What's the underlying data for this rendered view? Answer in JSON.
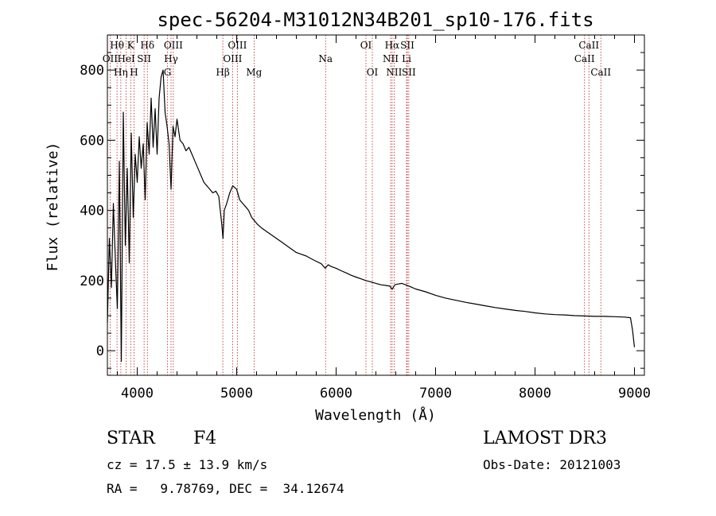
{
  "chart_data": {
    "type": "line",
    "title": "spec-56204-M31012N34B201_sp10-176.fits",
    "xlabel": "Wavelength (Å)",
    "ylabel": "Flux (relative)",
    "xlim": [
      3700,
      9100
    ],
    "ylim": [
      -70,
      900
    ],
    "xticks": [
      4000,
      5000,
      6000,
      7000,
      8000,
      9000
    ],
    "yticks": [
      0,
      200,
      400,
      600,
      800
    ],
    "series": [
      {
        "name": "spectrum",
        "x": [
          3700,
          3720,
          3740,
          3760,
          3780,
          3800,
          3820,
          3840,
          3860,
          3880,
          3900,
          3920,
          3940,
          3960,
          3980,
          4000,
          4020,
          4040,
          4060,
          4080,
          4100,
          4120,
          4140,
          4160,
          4180,
          4200,
          4220,
          4240,
          4260,
          4280,
          4300,
          4320,
          4340,
          4360,
          4380,
          4400,
          4430,
          4460,
          4490,
          4520,
          4550,
          4580,
          4610,
          4640,
          4670,
          4700,
          4730,
          4760,
          4790,
          4820,
          4850,
          4862,
          4875,
          4900,
          4930,
          4960,
          5000,
          5030,
          5060,
          5090,
          5120,
          5150,
          5180,
          5210,
          5250,
          5300,
          5350,
          5400,
          5450,
          5500,
          5550,
          5600,
          5650,
          5700,
          5750,
          5800,
          5850,
          5890,
          5920,
          5950,
          6000,
          6050,
          6100,
          6150,
          6200,
          6250,
          6300,
          6350,
          6400,
          6450,
          6500,
          6540,
          6563,
          6590,
          6620,
          6660,
          6700,
          6750,
          6800,
          6900,
          7000,
          7100,
          7200,
          7300,
          7400,
          7500,
          7600,
          7700,
          7800,
          7900,
          8000,
          8100,
          8200,
          8300,
          8400,
          8500,
          8600,
          8700,
          8800,
          8900,
          8960,
          8980,
          9000
        ],
        "y": [
          80,
          320,
          180,
          420,
          260,
          120,
          540,
          -30,
          680,
          300,
          520,
          250,
          620,
          380,
          560,
          480,
          610,
          520,
          590,
          430,
          650,
          560,
          720,
          580,
          690,
          560,
          720,
          780,
          800,
          680,
          640,
          590,
          460,
          640,
          610,
          660,
          600,
          590,
          570,
          580,
          560,
          540,
          520,
          500,
          480,
          470,
          460,
          450,
          455,
          440,
          360,
          320,
          400,
          420,
          450,
          470,
          460,
          430,
          420,
          410,
          400,
          380,
          370,
          360,
          350,
          340,
          330,
          320,
          310,
          300,
          290,
          280,
          275,
          270,
          262,
          255,
          248,
          235,
          245,
          240,
          235,
          228,
          222,
          215,
          210,
          205,
          200,
          196,
          192,
          188,
          186,
          184,
          175,
          188,
          190,
          192,
          188,
          182,
          176,
          168,
          158,
          150,
          144,
          138,
          133,
          128,
          123,
          119,
          115,
          112,
          108,
          105,
          103,
          102,
          100,
          99,
          98,
          98,
          97,
          96,
          94,
          60,
          10
        ]
      }
    ],
    "lines": [
      {
        "name": "Hθ",
        "x": 3797,
        "row": 0
      },
      {
        "name": "OII",
        "x": 3727,
        "row": 1
      },
      {
        "name": "Hη",
        "x": 3835,
        "row": 2
      },
      {
        "name": "K",
        "x": 3934,
        "row": 0
      },
      {
        "name": "HeI",
        "x": 3889,
        "row": 1
      },
      {
        "name": "H",
        "x": 3968,
        "row": 2
      },
      {
        "name": "Hδ",
        "x": 4102,
        "row": 0
      },
      {
        "name": "SII",
        "x": 4069,
        "row": 1
      },
      {
        "name": "OIII",
        "x": 4363,
        "row": 0
      },
      {
        "name": "Hγ",
        "x": 4340,
        "row": 1
      },
      {
        "name": "G",
        "x": 4304,
        "row": 2
      },
      {
        "name": "Hβ",
        "x": 4861,
        "row": 2
      },
      {
        "name": "OIII",
        "x": 5007,
        "row": 0
      },
      {
        "name": "OIII",
        "x": 4959,
        "row": 1
      },
      {
        "name": "Mg",
        "x": 5175,
        "row": 2
      },
      {
        "name": "Na",
        "x": 5894,
        "row": 1
      },
      {
        "name": "OI",
        "x": 6300,
        "row": 0
      },
      {
        "name": "OI",
        "x": 6364,
        "row": 2
      },
      {
        "name": "Hα",
        "x": 6563,
        "row": 0
      },
      {
        "name": "NII",
        "x": 6548,
        "row": 1
      },
      {
        "name": "NII",
        "x": 6583,
        "row": 2
      },
      {
        "name": "SII",
        "x": 6716,
        "row": 0
      },
      {
        "name": "Li",
        "x": 6708,
        "row": 1
      },
      {
        "name": "SII",
        "x": 6731,
        "row": 2
      },
      {
        "name": "CaII",
        "x": 8542,
        "row": 0
      },
      {
        "name": "CaII",
        "x": 8498,
        "row": 1
      },
      {
        "name": "CaII",
        "x": 8662,
        "row": 2
      }
    ]
  },
  "info": {
    "class_label": "STAR",
    "subclass": "F4",
    "survey": "LAMOST DR3",
    "redshift": "cz = 17.5 ± 13.9 km/s",
    "obs_date": "Obs-Date: 20121003",
    "coords": "RA =   9.78769, DEC =  34.12674"
  },
  "colors": {
    "spectrum": "#000000",
    "line_marker": "#b22222"
  }
}
